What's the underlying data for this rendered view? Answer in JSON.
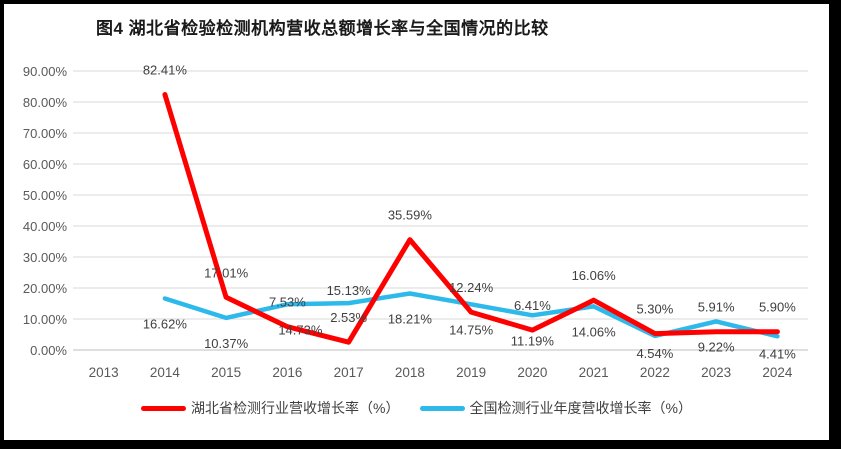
{
  "figure": {
    "title": "图4 湖北省检验检测机构营收总额增长率与全国情况的比较"
  },
  "chart_data": {
    "type": "line",
    "title": "图4 湖北省检验检测机构营收总额增长率与全国情况的比较",
    "categories": [
      "2013",
      "2014",
      "2015",
      "2016",
      "2017",
      "2018",
      "2019",
      "2020",
      "2021",
      "2022",
      "2023",
      "2024"
    ],
    "series": [
      {
        "name": "湖北省检测行业营收增长率（%）",
        "color": "#FF0000",
        "line_width": 5,
        "values": [
          null,
          82.41,
          17.01,
          7.53,
          2.53,
          35.59,
          12.24,
          6.41,
          16.06,
          5.3,
          5.91,
          5.9
        ],
        "label_offset_default": [
          0,
          -20
        ],
        "label_offset_overrides": {}
      },
      {
        "name": "全国检测行业年度营收增长率（%）",
        "color": "#2EB9EB",
        "line_width": 4.5,
        "values": [
          null,
          16.62,
          10.37,
          14.73,
          15.13,
          18.21,
          14.75,
          11.19,
          14.06,
          4.54,
          9.22,
          4.41
        ],
        "label_offset_default": [
          0,
          30
        ],
        "label_offset_overrides": {
          "3": [
            13,
            30
          ],
          "4": [
            0,
            -8
          ],
          "9": [
            0,
            22
          ],
          "11": [
            0,
            22
          ]
        }
      }
    ],
    "ylim": [
      0,
      90
    ],
    "ytick_step": 10,
    "ytick_format": "0.00%",
    "xlabel": "",
    "ylabel": "",
    "grid": true,
    "data_labels": true,
    "legend_position": "bottom",
    "colors": {
      "gridline": "#D9D9D9",
      "axis_line": "#BFBFBF",
      "tick_text": "#595959",
      "data_label_text": "#404040",
      "title_text": "#1A1A1A",
      "legend_text": "#404040",
      "background": "#FFFFFF",
      "border": "#000000"
    }
  }
}
